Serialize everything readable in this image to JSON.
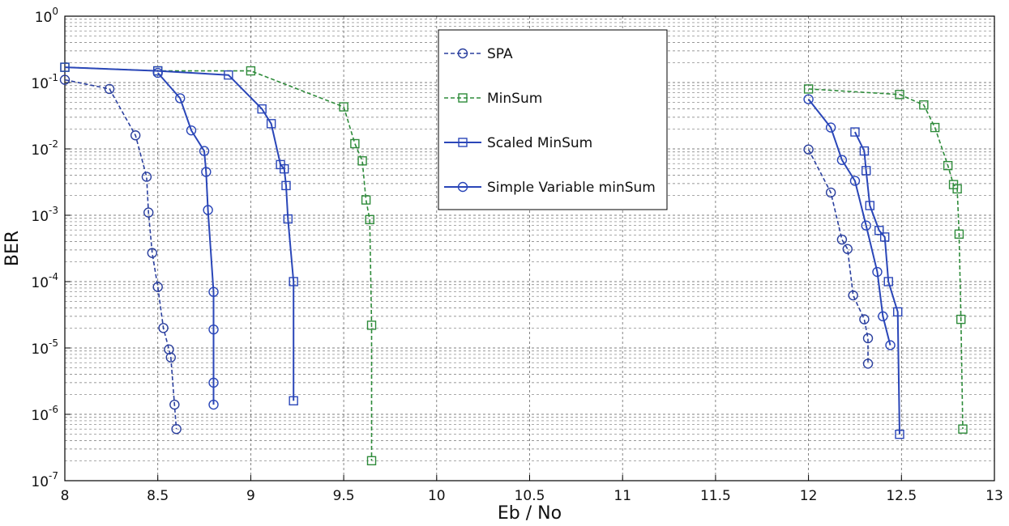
{
  "chart_data": {
    "type": "line",
    "title": "",
    "xlabel": "Eb / No",
    "ylabel": "BER",
    "xlim": [
      8,
      13
    ],
    "ylim": [
      1e-07,
      1
    ],
    "yscale": "log",
    "grid": true,
    "legend_position": "top-center",
    "x_ticks": [
      "8",
      "8.5",
      "9",
      "9.5",
      "10",
      "10.5",
      "11",
      "11.5",
      "12",
      "12.5",
      "13"
    ],
    "y_ticks": [
      {
        "base": "10",
        "exp": "0"
      },
      {
        "base": "10",
        "exp": "-1"
      },
      {
        "base": "10",
        "exp": "-2"
      },
      {
        "base": "10",
        "exp": "-3"
      },
      {
        "base": "10",
        "exp": "-4"
      },
      {
        "base": "10",
        "exp": "-5"
      },
      {
        "base": "10",
        "exp": "-6"
      },
      {
        "base": "10",
        "exp": "-7"
      }
    ],
    "series": [
      {
        "name": "SPA",
        "color": "#2a3f9e",
        "dash": "dashed",
        "marker": "circle",
        "segments": [
          [
            [
              8.0,
              0.11
            ],
            [
              8.24,
              0.08
            ],
            [
              8.38,
              0.016
            ],
            [
              8.44,
              0.0038
            ],
            [
              8.45,
              0.0011
            ],
            [
              8.47,
              0.00027
            ],
            [
              8.5,
              8.3e-05
            ],
            [
              8.53,
              2e-05
            ],
            [
              8.56,
              9.5e-06
            ],
            [
              8.57,
              7.2e-06
            ],
            [
              8.59,
              1.4e-06
            ],
            [
              8.6,
              6e-07
            ]
          ],
          [
            [
              12.0,
              0.0098
            ],
            [
              12.12,
              0.0022
            ],
            [
              12.18,
              0.00043
            ],
            [
              12.21,
              0.00031
            ],
            [
              12.24,
              6.2e-05
            ],
            [
              12.3,
              2.7e-05
            ],
            [
              12.32,
              1.4e-05
            ],
            [
              12.32,
              5.8e-06
            ]
          ]
        ]
      },
      {
        "name": "MinSum",
        "color": "#2e8b3a",
        "dash": "dashed",
        "marker": "square",
        "segments": [
          [
            [
              8.0,
              0.17
            ],
            [
              8.5,
              0.15
            ],
            [
              9.0,
              0.15
            ],
            [
              9.5,
              0.043
            ],
            [
              9.56,
              0.012
            ],
            [
              9.6,
              0.0066
            ],
            [
              9.62,
              0.0017
            ],
            [
              9.64,
              0.00086
            ],
            [
              9.65,
              2.2e-05
            ],
            [
              9.65,
              2e-07
            ]
          ],
          [
            [
              12.0,
              0.08
            ],
            [
              12.49,
              0.066
            ],
            [
              12.62,
              0.046
            ],
            [
              12.68,
              0.021
            ],
            [
              12.75,
              0.0056
            ],
            [
              12.78,
              0.0029
            ],
            [
              12.8,
              0.0025
            ],
            [
              12.81,
              0.00052
            ],
            [
              12.82,
              2.7e-05
            ],
            [
              12.83,
              6e-07
            ]
          ]
        ]
      },
      {
        "name": "Scaled MinSum",
        "color": "#2a46b8",
        "dash": "solid",
        "marker": "square",
        "segments": [
          [
            [
              8.0,
              0.17
            ],
            [
              8.5,
              0.15
            ],
            [
              8.88,
              0.13
            ],
            [
              9.06,
              0.04
            ],
            [
              9.11,
              0.024
            ],
            [
              9.16,
              0.0058
            ],
            [
              9.18,
              0.005
            ],
            [
              9.19,
              0.0028
            ],
            [
              9.2,
              0.00088
            ],
            [
              9.23,
              0.0001
            ],
            [
              9.23,
              1.6e-06
            ]
          ],
          [
            [
              12.25,
              0.018
            ],
            [
              12.3,
              0.0093
            ],
            [
              12.31,
              0.0047
            ],
            [
              12.33,
              0.0014
            ],
            [
              12.38,
              0.00059
            ],
            [
              12.41,
              0.00047
            ],
            [
              12.43,
              0.0001
            ],
            [
              12.48,
              3.5e-05
            ],
            [
              12.49,
              5e-07
            ]
          ]
        ]
      },
      {
        "name": "Simple Variable minSum",
        "color": "#2a46b8",
        "dash": "solid",
        "marker": "circle",
        "segments": [
          [
            [
              8.5,
              0.14
            ],
            [
              8.62,
              0.058
            ],
            [
              8.68,
              0.019
            ],
            [
              8.75,
              0.0093
            ],
            [
              8.76,
              0.0045
            ],
            [
              8.77,
              0.0012
            ],
            [
              8.8,
              7e-05
            ],
            [
              8.8,
              1.9e-05
            ],
            [
              8.8,
              3e-06
            ],
            [
              8.8,
              1.4e-06
            ]
          ],
          [
            [
              12.0,
              0.056
            ],
            [
              12.12,
              0.021
            ],
            [
              12.18,
              0.0068
            ],
            [
              12.25,
              0.0033
            ],
            [
              12.31,
              0.0007
            ],
            [
              12.37,
              0.00014
            ],
            [
              12.4,
              3e-05
            ],
            [
              12.44,
              1.1e-05
            ]
          ]
        ]
      }
    ]
  }
}
